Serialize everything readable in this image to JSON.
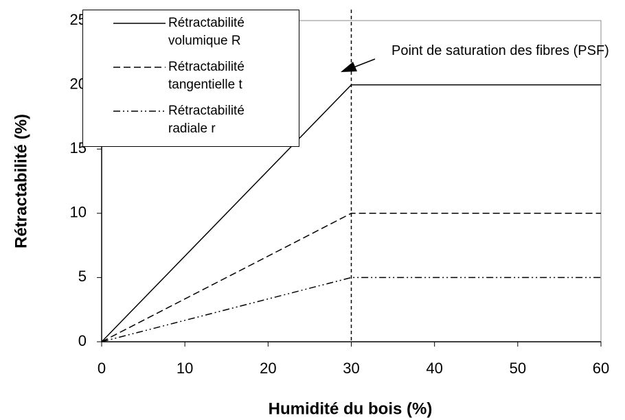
{
  "chart_data": {
    "type": "line",
    "x_label": "Humidité du bois (%)",
    "y_label": "Rétractabilité (%)",
    "x": [
      0,
      30,
      60
    ],
    "series": [
      {
        "name": "Rétractabilité volumique R",
        "color": "#000000",
        "dash": "solid",
        "values": [
          0,
          20,
          20
        ]
      },
      {
        "name": "Rétractabilité tangentielle t",
        "color": "#000000",
        "dash": "dashed",
        "values": [
          0,
          10,
          10
        ]
      },
      {
        "name": "Rétractabilité radiale r",
        "color": "#000000",
        "dash": "dashdotdot",
        "values": [
          0,
          5,
          5
        ]
      }
    ],
    "xlim": [
      0,
      60
    ],
    "xticks": [
      0,
      10,
      20,
      30,
      40,
      50,
      60
    ],
    "ylim": [
      0,
      25
    ],
    "yticks": [
      0,
      5,
      10,
      15,
      20,
      25
    ],
    "vline": 30,
    "annotation": "Point de saturation des fibres (PSF)",
    "legend": "upper left"
  }
}
